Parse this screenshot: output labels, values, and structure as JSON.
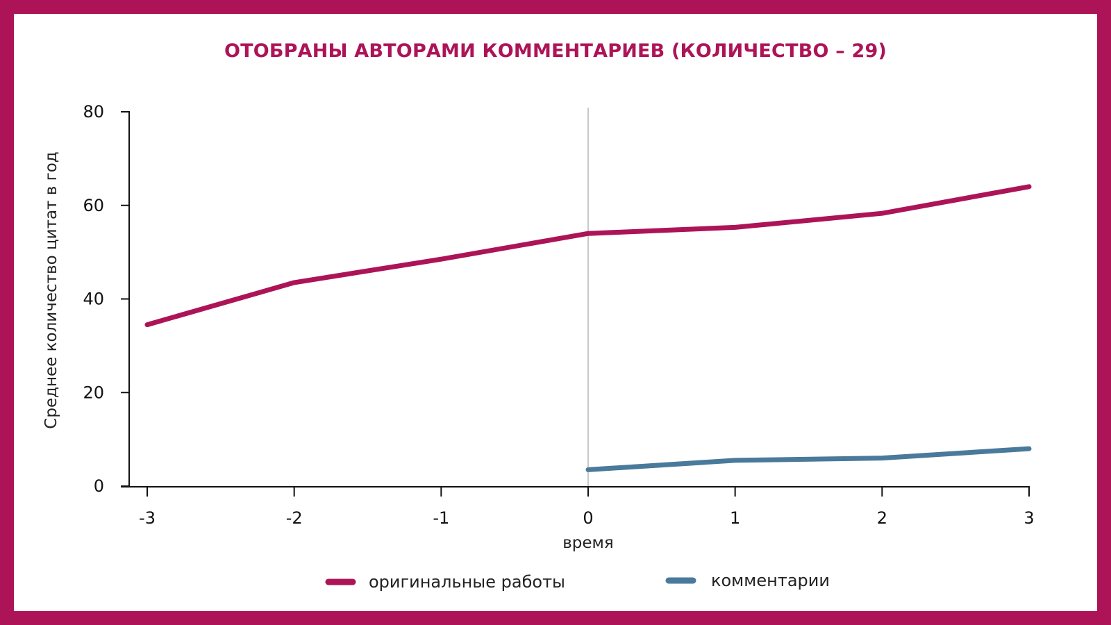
{
  "colors": {
    "accent": "#ad1457",
    "original_series": "#ad1457",
    "comments_series": "#4a7a9b",
    "axis": "#111111",
    "reference_line": "#c8c8c8"
  },
  "chart_data": {
    "type": "line",
    "title": "ОТОБРАНЫ АВТОРАМИ КОММЕНТАРИЕВ (КОЛИЧЕСТВО – 29)",
    "xlabel": "время",
    "ylabel": "Среднее количество цитат в год",
    "xlim": [
      -3,
      3
    ],
    "ylim": [
      0,
      80
    ],
    "x_ticks": [
      "-3",
      "-2",
      "-1",
      "0",
      "1",
      "2",
      "3"
    ],
    "y_ticks": [
      "0",
      "20",
      "40",
      "60",
      "80"
    ],
    "reference_line_x": 0,
    "grid": false,
    "legend_position": "bottom",
    "series": [
      {
        "name": "оригинальные работы",
        "color": "#ad1457",
        "points": [
          {
            "x": -3,
            "y": 34.5
          },
          {
            "x": -2,
            "y": 43.5
          },
          {
            "x": -1,
            "y": 48.5
          },
          {
            "x": 0,
            "y": 54
          },
          {
            "x": 1,
            "y": 55.3
          },
          {
            "x": 2,
            "y": 58.3
          },
          {
            "x": 3,
            "y": 64
          }
        ]
      },
      {
        "name": "комментарии",
        "color": "#4a7a9b",
        "points": [
          {
            "x": 0,
            "y": 3.5
          },
          {
            "x": 1,
            "y": 5.5
          },
          {
            "x": 2,
            "y": 6
          },
          {
            "x": 3,
            "y": 8
          }
        ]
      }
    ]
  }
}
